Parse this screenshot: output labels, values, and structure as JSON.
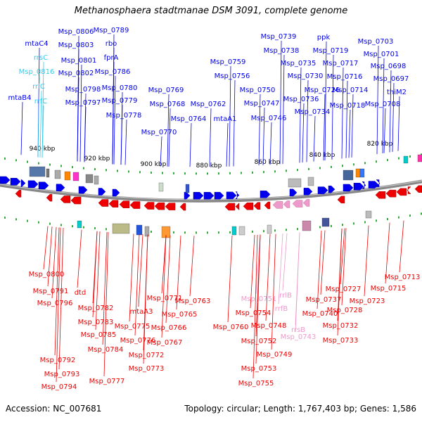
{
  "title": "Methanosphaera stadtmanae DSM 3091, complete genome",
  "footer": {
    "accession": "Accession: NC_007681",
    "stats": "Topology: circular; Length: 1,767,403 bp; Genes: 1,586"
  },
  "colors": {
    "forward": "#0000ee",
    "reverse": "#ee0000",
    "rrna_forward": "#33ccee",
    "rrna_reverse": "#ee99cc",
    "backbone": "#888888"
  },
  "ticks": [
    "940 kbp",
    "920 kbp",
    "900 kbp",
    "880 kbp",
    "860 kbp",
    "840 kbp",
    "820 kbp"
  ],
  "top_labels": [
    {
      "text": "Msp_0789",
      "kind": "gene"
    },
    {
      "text": "Msp_0806",
      "kind": "gene"
    },
    {
      "text": "mtaC4",
      "kind": "gene"
    },
    {
      "text": "Msp_0803",
      "kind": "gene"
    },
    {
      "text": "rbo",
      "kind": "gene"
    },
    {
      "text": "rrsC",
      "kind": "rrna"
    },
    {
      "text": "Msp_0801",
      "kind": "gene"
    },
    {
      "text": "fprA",
      "kind": "gene"
    },
    {
      "text": "Msp_0816",
      "kind": "rrna"
    },
    {
      "text": "Msp_0802",
      "kind": "gene"
    },
    {
      "text": "Msp_0786",
      "kind": "gene"
    },
    {
      "text": "rrlC",
      "kind": "rrna"
    },
    {
      "text": "Msp_0798",
      "kind": "gene"
    },
    {
      "text": "Msp_0780",
      "kind": "gene"
    },
    {
      "text": "mtaB4",
      "kind": "gene"
    },
    {
      "text": "rrfC",
      "kind": "rrna"
    },
    {
      "text": "Msp_0797",
      "kind": "gene"
    },
    {
      "text": "Msp_0779",
      "kind": "gene"
    },
    {
      "text": "Msp_0778",
      "kind": "gene"
    },
    {
      "text": "Msp_0769",
      "kind": "gene"
    },
    {
      "text": "Msp_0768",
      "kind": "gene"
    },
    {
      "text": "Msp_0770",
      "kind": "gene"
    },
    {
      "text": "Msp_0762",
      "kind": "gene"
    },
    {
      "text": "Msp_0764",
      "kind": "gene"
    },
    {
      "text": "Msp_0759",
      "kind": "gene"
    },
    {
      "text": "Msp_0756",
      "kind": "gene"
    },
    {
      "text": "Msp_0750",
      "kind": "gene"
    },
    {
      "text": "Msp_0747",
      "kind": "gene"
    },
    {
      "text": "mtaA1",
      "kind": "gene"
    },
    {
      "text": "Msp_0746",
      "kind": "gene"
    },
    {
      "text": "Msp_0739",
      "kind": "gene"
    },
    {
      "text": "Msp_0738",
      "kind": "gene"
    },
    {
      "text": "Msp_0735",
      "kind": "gene"
    },
    {
      "text": "Msp_0730",
      "kind": "gene"
    },
    {
      "text": "Msp_0726",
      "kind": "gene"
    },
    {
      "text": "Msp_0736",
      "kind": "gene"
    },
    {
      "text": "Msp_0734",
      "kind": "gene"
    },
    {
      "text": "ppk",
      "kind": "gene"
    },
    {
      "text": "Msp_0719",
      "kind": "gene"
    },
    {
      "text": "Msp_0717",
      "kind": "gene"
    },
    {
      "text": "Msp_0716",
      "kind": "gene"
    },
    {
      "text": "Msp_0714",
      "kind": "gene"
    },
    {
      "text": "Msp_0718",
      "kind": "gene"
    },
    {
      "text": "Msp_0703",
      "kind": "gene"
    },
    {
      "text": "Msp_0701",
      "kind": "gene"
    },
    {
      "text": "Msp_0698",
      "kind": "gene"
    },
    {
      "text": "Msp_0697",
      "kind": "gene"
    },
    {
      "text": "thiM2",
      "kind": "gene"
    },
    {
      "text": "Msp_0708",
      "kind": "gene"
    }
  ],
  "bottom_labels": [
    {
      "text": "Msp_0800",
      "kind": "gene"
    },
    {
      "text": "Msp_0791",
      "kind": "gene"
    },
    {
      "text": "Msp_0796",
      "kind": "gene"
    },
    {
      "text": "dtd",
      "kind": "gene"
    },
    {
      "text": "Msp_0782",
      "kind": "gene"
    },
    {
      "text": "Msp_0783",
      "kind": "gene"
    },
    {
      "text": "Msp_0785",
      "kind": "gene"
    },
    {
      "text": "Msp_0784",
      "kind": "gene"
    },
    {
      "text": "Msp_0792",
      "kind": "gene"
    },
    {
      "text": "Msp_0793",
      "kind": "gene"
    },
    {
      "text": "Msp_0794",
      "kind": "gene"
    },
    {
      "text": "Msp_0777",
      "kind": "gene"
    },
    {
      "text": "Msp_0771",
      "kind": "gene"
    },
    {
      "text": "mtaA3",
      "kind": "gene"
    },
    {
      "text": "Msp_0775",
      "kind": "gene"
    },
    {
      "text": "Msp_0776",
      "kind": "gene"
    },
    {
      "text": "Msp_0772",
      "kind": "gene"
    },
    {
      "text": "Msp_0773",
      "kind": "gene"
    },
    {
      "text": "Msp_0765",
      "kind": "gene"
    },
    {
      "text": "Msp_0766",
      "kind": "gene"
    },
    {
      "text": "Msp_0767",
      "kind": "gene"
    },
    {
      "text": "Msp_0763",
      "kind": "gene"
    },
    {
      "text": "Msp_0760",
      "kind": "gene"
    },
    {
      "text": "Msp_0751",
      "kind": "rrna"
    },
    {
      "text": "Msp_0754",
      "kind": "gene"
    },
    {
      "text": "Msp_0748",
      "kind": "gene"
    },
    {
      "text": "Msp_0752",
      "kind": "gene"
    },
    {
      "text": "Msp_0749",
      "kind": "gene"
    },
    {
      "text": "Msp_0753",
      "kind": "gene"
    },
    {
      "text": "Msp_0755",
      "kind": "gene"
    },
    {
      "text": "rrlB",
      "kind": "rrna"
    },
    {
      "text": "rrfB",
      "kind": "rrna"
    },
    {
      "text": "rrsB",
      "kind": "rrna"
    },
    {
      "text": "Msp_0743",
      "kind": "rrna"
    },
    {
      "text": "Msp_0737",
      "kind": "gene"
    },
    {
      "text": "Msp_0740",
      "kind": "gene"
    },
    {
      "text": "Msp_0727",
      "kind": "gene"
    },
    {
      "text": "Msp_0728",
      "kind": "gene"
    },
    {
      "text": "Msp_0723",
      "kind": "gene"
    },
    {
      "text": "Msp_0732",
      "kind": "gene"
    },
    {
      "text": "Msp_0733",
      "kind": "gene"
    },
    {
      "text": "Msp_0713",
      "kind": "gene"
    },
    {
      "text": "Msp_0715",
      "kind": "gene"
    }
  ]
}
